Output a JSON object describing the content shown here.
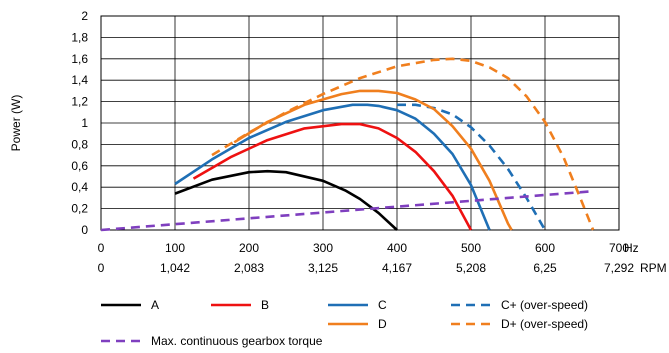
{
  "chart_data": {
    "type": "line",
    "ylabel": "Power (W)",
    "xlim": [
      0,
      700
    ],
    "ylim": [
      0,
      2
    ],
    "grid": true,
    "legend_position": "bottom",
    "x_ticks": [
      "0",
      "100",
      "200",
      "300",
      "400",
      "500",
      "600",
      "700"
    ],
    "x_unit": "Hz",
    "x2_ticks": [
      "0",
      "1,042",
      "2,083",
      "3,125",
      "4,167",
      "5,208",
      "6,25",
      "7,292"
    ],
    "x2_unit": "RPM",
    "y_ticks": [
      "0",
      "0,2",
      "0,4",
      "0,6",
      "0,8",
      "1",
      "1,2",
      "1,4",
      "1,6",
      "1,8",
      "2"
    ],
    "series": [
      {
        "name": "A",
        "color": "#000000",
        "dash": false,
        "legend_col": 0,
        "legend_row": 0,
        "x": [
          100,
          150,
          200,
          225,
          250,
          300,
          330,
          350,
          375,
          400
        ],
        "y": [
          0.34,
          0.47,
          0.54,
          0.55,
          0.54,
          0.46,
          0.37,
          0.29,
          0.16,
          0.0
        ]
      },
      {
        "name": "B",
        "color": "#ee1111",
        "dash": false,
        "legend_col": 1,
        "legend_row": 0,
        "x": [
          125,
          175,
          225,
          275,
          325,
          350,
          375,
          400,
          425,
          450,
          475,
          500
        ],
        "y": [
          0.48,
          0.68,
          0.84,
          0.95,
          0.99,
          0.99,
          0.95,
          0.86,
          0.73,
          0.55,
          0.32,
          0.0
        ]
      },
      {
        "name": "C",
        "color": "#1f6fb5",
        "dash": false,
        "legend_col": 2,
        "legend_row": 0,
        "x": [
          100,
          150,
          200,
          250,
          300,
          340,
          360,
          375,
          400,
          425,
          450,
          475,
          500,
          525
        ],
        "y": [
          0.43,
          0.66,
          0.86,
          1.01,
          1.12,
          1.17,
          1.17,
          1.16,
          1.12,
          1.04,
          0.9,
          0.71,
          0.42,
          0.0
        ]
      },
      {
        "name": "C+ (over-speed)",
        "color": "#1f6fb5",
        "dash": true,
        "legend_col": 3,
        "legend_row": 0,
        "x": [
          400,
          425,
          450,
          475,
          500,
          525,
          550,
          575,
          600
        ],
        "y": [
          1.17,
          1.17,
          1.14,
          1.08,
          0.96,
          0.79,
          0.57,
          0.3,
          0.0
        ]
      },
      {
        "name": "D",
        "color": "#f07f1e",
        "dash": false,
        "legend_col": 2,
        "legend_row": 1,
        "x": [
          180,
          225,
          275,
          325,
          350,
          375,
          400,
          425,
          450,
          475,
          500,
          525,
          550,
          555
        ],
        "y": [
          0.82,
          1.01,
          1.17,
          1.27,
          1.3,
          1.3,
          1.28,
          1.22,
          1.13,
          0.97,
          0.76,
          0.46,
          0.06,
          0.0
        ]
      },
      {
        "name": "D+ (over-speed)",
        "color": "#f07f1e",
        "dash": true,
        "legend_col": 3,
        "legend_row": 1,
        "x": [
          150,
          200,
          250,
          300,
          350,
          400,
          450,
          475,
          500,
          525,
          550,
          575,
          600,
          625,
          650,
          665
        ],
        "y": [
          0.7,
          0.91,
          1.1,
          1.27,
          1.42,
          1.53,
          1.59,
          1.6,
          1.58,
          1.52,
          1.42,
          1.25,
          1.01,
          0.68,
          0.26,
          0.0
        ]
      },
      {
        "name": "Max. continuous gearbox torque",
        "color": "#7f3fbf",
        "dash": true,
        "legend_col": 0,
        "legend_row": 2,
        "x": [
          0,
          660
        ],
        "y": [
          0.0,
          0.36
        ]
      }
    ]
  }
}
